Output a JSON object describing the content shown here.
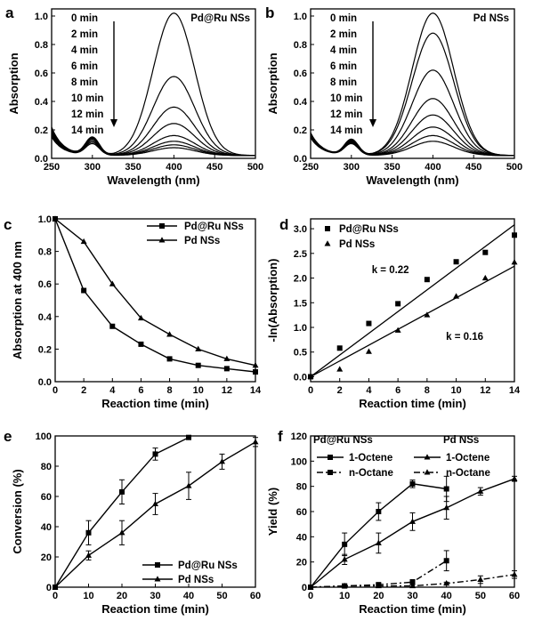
{
  "chart_data": [
    {
      "panel": "a",
      "type": "line",
      "label": "Pd@Ru NSs",
      "xlabel": "Wavelength (nm)",
      "ylabel": "Absorption",
      "xlim": [
        250,
        500
      ],
      "ylim": [
        0,
        1.05
      ],
      "xticks": [
        250,
        300,
        350,
        400,
        450,
        500
      ],
      "yticks": [
        0.0,
        0.2,
        0.4,
        0.6,
        0.8,
        1.0
      ],
      "legend_entries": [
        "0 min",
        "2 min",
        "4 min",
        "6 min",
        "8 min",
        "10 min",
        "12 min",
        "14 min"
      ],
      "peak_wavelength": 400,
      "series": [
        {
          "peak": 1.0,
          "peak_300": 0.11,
          "value_250": 0.2
        },
        {
          "peak": 0.555,
          "peak_300": 0.125,
          "value_250": 0.19
        },
        {
          "peak": 0.34,
          "peak_300": 0.12,
          "value_250": 0.18
        },
        {
          "peak": 0.225,
          "peak_300": 0.115,
          "value_250": 0.17
        },
        {
          "peak": 0.14,
          "peak_300": 0.11,
          "value_250": 0.16
        },
        {
          "peak": 0.1,
          "peak_300": 0.1,
          "value_250": 0.15
        },
        {
          "peak": 0.075,
          "peak_300": 0.09,
          "value_250": 0.14
        },
        {
          "peak": 0.055,
          "peak_300": 0.08,
          "value_250": 0.13
        }
      ]
    },
    {
      "panel": "b",
      "type": "line",
      "label": "Pd NSs",
      "xlabel": "Wavelength (nm)",
      "ylabel": "Absorption",
      "xlim": [
        250,
        500
      ],
      "ylim": [
        0,
        1.05
      ],
      "xticks": [
        250,
        300,
        350,
        400,
        450,
        500
      ],
      "yticks": [
        0.0,
        0.2,
        0.4,
        0.6,
        0.8,
        1.0
      ],
      "legend_entries": [
        "0 min",
        "2 min",
        "4 min",
        "6 min",
        "8 min",
        "10 min",
        "12 min",
        "14 min"
      ],
      "peak_wavelength": 400,
      "series": [
        {
          "peak": 1.0,
          "peak_300": 0.11,
          "value_250": 0.16
        },
        {
          "peak": 0.86,
          "peak_300": 0.11,
          "value_250": 0.155
        },
        {
          "peak": 0.6,
          "peak_300": 0.105,
          "value_250": 0.15
        },
        {
          "peak": 0.4,
          "peak_300": 0.1,
          "value_250": 0.145
        },
        {
          "peak": 0.285,
          "peak_300": 0.095,
          "value_250": 0.14
        },
        {
          "peak": 0.2,
          "peak_300": 0.09,
          "value_250": 0.135
        },
        {
          "peak": 0.14,
          "peak_300": 0.085,
          "value_250": 0.13
        },
        {
          "peak": 0.1,
          "peak_300": 0.08,
          "value_250": 0.125
        }
      ]
    },
    {
      "panel": "c",
      "type": "line",
      "xlabel": "Reaction time (min)",
      "ylabel": "Absorption at 400 nm",
      "xlim": [
        0,
        14
      ],
      "ylim": [
        0,
        1.0
      ],
      "xticks": [
        0,
        2,
        4,
        6,
        8,
        10,
        12,
        14
      ],
      "yticks": [
        0.0,
        0.2,
        0.4,
        0.6,
        0.8,
        1.0
      ],
      "legend_position": "top-right",
      "x": [
        0,
        2,
        4,
        6,
        8,
        10,
        12,
        14
      ],
      "series": [
        {
          "name": "Pd@Ru NSs",
          "marker": "square",
          "values": [
            1.0,
            0.56,
            0.34,
            0.23,
            0.14,
            0.1,
            0.08,
            0.06
          ]
        },
        {
          "name": "Pd NSs",
          "marker": "triangle",
          "values": [
            1.0,
            0.86,
            0.6,
            0.39,
            0.29,
            0.2,
            0.14,
            0.1
          ]
        }
      ]
    },
    {
      "panel": "d",
      "type": "scatter",
      "xlabel": "Reaction time (min)",
      "ylabel": "-ln(Absorption)",
      "xlim": [
        0,
        14
      ],
      "ylim": [
        -0.1,
        3.2
      ],
      "xticks": [
        0,
        2,
        4,
        6,
        8,
        10,
        12,
        14
      ],
      "yticks": [
        0.0,
        0.5,
        1.0,
        1.5,
        2.0,
        2.5,
        3.0
      ],
      "legend_position": "top-left",
      "x": [
        0,
        2,
        4,
        6,
        8,
        10,
        12,
        14
      ],
      "series": [
        {
          "name": "Pd@Ru NSs",
          "marker": "square",
          "values": [
            0.0,
            0.58,
            1.08,
            1.48,
            1.97,
            2.33,
            2.52,
            2.87
          ],
          "fit_slope": 0.22,
          "fit_label": "k = 0.22"
        },
        {
          "name": "Pd NSs",
          "marker": "triangle",
          "values": [
            0.0,
            0.15,
            0.51,
            0.94,
            1.25,
            1.63,
            2.0,
            2.32
          ],
          "fit_slope": 0.16,
          "fit_label": "k = 0.16"
        }
      ]
    },
    {
      "panel": "e",
      "type": "line",
      "xlabel": "Reaction time (min)",
      "ylabel": "Conversion (%)",
      "xlim": [
        0,
        60
      ],
      "ylim": [
        0,
        100
      ],
      "xticks": [
        0,
        10,
        20,
        30,
        40,
        50,
        60
      ],
      "yticks": [
        0,
        20,
        40,
        60,
        80,
        100
      ],
      "legend_position": "bottom-right",
      "series": [
        {
          "name": "Pd@Ru NSs",
          "marker": "square",
          "x": [
            0,
            10,
            20,
            30,
            40
          ],
          "values": [
            0,
            36,
            63,
            88,
            99
          ],
          "errors": [
            0,
            8,
            8,
            4,
            0
          ]
        },
        {
          "name": "Pd NSs",
          "marker": "triangle",
          "x": [
            0,
            10,
            20,
            30,
            40,
            50,
            60
          ],
          "values": [
            0,
            21,
            36,
            55,
            67,
            83,
            96
          ],
          "errors": [
            0,
            3,
            8,
            7,
            9,
            5,
            3
          ]
        }
      ]
    },
    {
      "panel": "f",
      "type": "line",
      "xlabel": "Reaction time (min)",
      "ylabel": "Yield (%)",
      "xlim": [
        0,
        60
      ],
      "ylim": [
        0,
        120
      ],
      "xticks": [
        0,
        10,
        20,
        30,
        40,
        50,
        60
      ],
      "yticks": [
        0,
        20,
        40,
        60,
        80,
        100,
        120
      ],
      "legend_groups": [
        "Pd@Ru NSs",
        "Pd NSs"
      ],
      "series": [
        {
          "name": "1-Octene",
          "group": "Pd@Ru NSs",
          "marker": "square",
          "dash": false,
          "x": [
            0,
            10,
            20,
            30,
            40
          ],
          "values": [
            0,
            34,
            60,
            82,
            78
          ],
          "errors": [
            0,
            9,
            7,
            3,
            10
          ]
        },
        {
          "name": "n-Octane",
          "group": "Pd@Ru NSs",
          "marker": "square",
          "dash": true,
          "x": [
            0,
            10,
            20,
            30,
            40
          ],
          "values": [
            0,
            1,
            2,
            4,
            21
          ],
          "errors": [
            0,
            1,
            1,
            2,
            8
          ]
        },
        {
          "name": "1-Octene",
          "group": "Pd NSs",
          "marker": "triangle",
          "dash": false,
          "x": [
            0,
            10,
            20,
            30,
            40,
            50,
            60
          ],
          "values": [
            0,
            22,
            35,
            52,
            63,
            76,
            86
          ],
          "errors": [
            0,
            4,
            8,
            7,
            9,
            3,
            2
          ]
        },
        {
          "name": "n-Octane",
          "group": "Pd NSs",
          "marker": "triangle",
          "dash": true,
          "x": [
            0,
            10,
            20,
            30,
            40,
            50,
            60
          ],
          "values": [
            0,
            1,
            1,
            1,
            3,
            6,
            10
          ],
          "errors": [
            0,
            1,
            1,
            1,
            1,
            3,
            3
          ]
        }
      ]
    }
  ]
}
